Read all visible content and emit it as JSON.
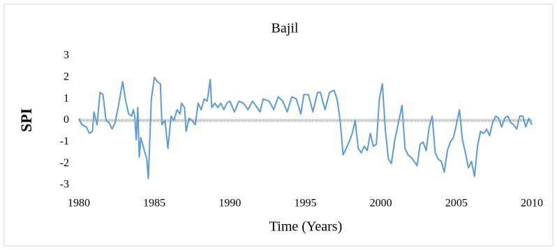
{
  "chart_data": {
    "type": "line",
    "title": "Bajil",
    "x_label": "Time (Years)",
    "y_label": "SPI",
    "color": "#5b9bd5",
    "x": [
      1980.0,
      1980.2,
      1980.5,
      1980.7,
      1980.9,
      1981.0,
      1981.2,
      1981.4,
      1981.6,
      1981.8,
      1982.0,
      1982.2,
      1982.4,
      1982.6,
      1982.9,
      1983.1,
      1983.3,
      1983.5,
      1983.6,
      1983.7,
      1983.8,
      1983.9,
      1984.0,
      1984.1,
      1984.3,
      1984.5,
      1984.6,
      1984.8,
      1985.0,
      1985.2,
      1985.4,
      1985.5,
      1985.7,
      1985.9,
      1986.1,
      1986.3,
      1986.5,
      1986.7,
      1986.8,
      1987.0,
      1987.1,
      1987.3,
      1987.5,
      1987.7,
      1987.9,
      1988.1,
      1988.3,
      1988.5,
      1988.7,
      1988.8,
      1989.0,
      1989.2,
      1989.4,
      1989.6,
      1989.8,
      1990.0,
      1990.3,
      1990.6,
      1990.9,
      1991.2,
      1991.5,
      1991.8,
      1992.0,
      1992.2,
      1992.6,
      1992.9,
      1993.2,
      1993.5,
      1993.8,
      1994.1,
      1994.4,
      1994.7,
      1994.9,
      1995.2,
      1995.5,
      1995.8,
      1996.0,
      1996.3,
      1996.6,
      1996.9,
      1997.1,
      1997.3,
      1997.5,
      1997.7,
      1997.9,
      1998.1,
      1998.3,
      1998.5,
      1998.7,
      1998.9,
      1999.1,
      1999.3,
      1999.5,
      1999.7,
      1999.9,
      2000.1,
      2000.3,
      2000.5,
      2000.7,
      2000.9,
      2001.1,
      2001.4,
      2001.6,
      2001.8,
      2002.0,
      2002.2,
      2002.4,
      2002.6,
      2002.8,
      2003.0,
      2003.2,
      2003.4,
      2003.6,
      2003.8,
      2004.0,
      2004.2,
      2004.4,
      2004.6,
      2004.8,
      2005.0,
      2005.2,
      2005.4,
      2005.6,
      2005.8,
      2006.0,
      2006.2,
      2006.4,
      2006.6,
      2006.8,
      2007.0,
      2007.2,
      2007.4,
      2007.6,
      2007.8,
      2008.0,
      2008.2,
      2008.4,
      2008.6,
      2008.8,
      2009.0,
      2009.2,
      2009.4,
      2009.6,
      2009.8,
      2010.0
    ],
    "values": [
      0.1,
      -0.2,
      -0.3,
      -0.6,
      -0.5,
      0.4,
      -0.2,
      1.3,
      1.2,
      0.0,
      -0.1,
      -0.4,
      -0.1,
      0.6,
      1.8,
      0.9,
      0.3,
      0.2,
      0.5,
      0.2,
      -0.9,
      0.6,
      -1.7,
      -0.8,
      -1.3,
      -1.8,
      -2.7,
      1.0,
      2.0,
      1.8,
      1.7,
      -0.2,
      0.0,
      -1.3,
      0.2,
      0.0,
      0.5,
      0.3,
      0.8,
      0.6,
      -0.5,
      0.1,
      0.0,
      -0.2,
      0.8,
      0.5,
      1.0,
      0.9,
      1.9,
      0.6,
      0.8,
      0.6,
      0.8,
      0.5,
      0.8,
      0.9,
      0.4,
      0.9,
      0.8,
      0.5,
      0.9,
      0.6,
      0.4,
      1.0,
      0.9,
      0.5,
      1.1,
      0.9,
      0.4,
      1.1,
      1.0,
      0.3,
      1.2,
      1.2,
      0.4,
      1.3,
      1.3,
      0.5,
      1.3,
      1.4,
      1.0,
      0.0,
      -1.6,
      -1.3,
      -1.0,
      -0.6,
      0.0,
      -1.3,
      -1.5,
      -1.2,
      -1.4,
      -0.6,
      -1.2,
      -1.1,
      1.0,
      1.7,
      -0.5,
      -1.8,
      -2.0,
      -1.0,
      -0.3,
      0.7,
      -1.3,
      -1.6,
      -1.7,
      -1.9,
      -2.1,
      -1.1,
      -1.0,
      -1.4,
      -0.3,
      0.2,
      -1.5,
      -1.8,
      -1.9,
      -2.4,
      -1.4,
      -1.0,
      -0.8,
      -0.2,
      0.5,
      -0.9,
      -1.5,
      -2.2,
      -1.9,
      -2.6,
      -1.2,
      -0.5,
      -0.6,
      -0.4,
      -0.7,
      -0.1,
      0.2,
      0.1,
      -0.3,
      0.1,
      0.2,
      -0.1,
      -0.2,
      -0.4,
      0.2,
      0.2,
      -0.3,
      0.1,
      -0.2
    ],
    "xlim": [
      1980,
      2010
    ],
    "xticks": [
      1980,
      1985,
      1990,
      1995,
      2000,
      2005,
      2010
    ],
    "ylim": [
      -3,
      3
    ],
    "yticks": [
      -3,
      -2,
      -1,
      0,
      1,
      2,
      3
    ]
  }
}
